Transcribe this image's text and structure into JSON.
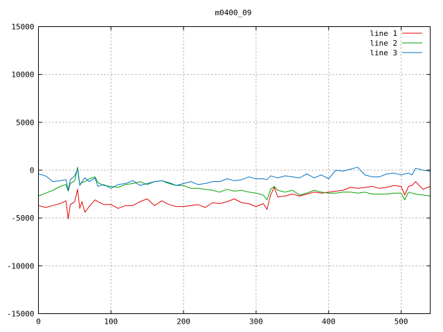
{
  "chart_data": {
    "type": "line",
    "title": "m0400_09",
    "xlabel": "",
    "ylabel": "",
    "xlim": [
      0,
      540
    ],
    "ylim": [
      -15000,
      15000
    ],
    "x_ticks": [
      0,
      100,
      200,
      300,
      400,
      500
    ],
    "y_ticks": [
      -15000,
      -10000,
      -5000,
      0,
      5000,
      10000,
      15000
    ],
    "grid": true,
    "legend_position": "top-right",
    "x": [
      0,
      10,
      20,
      30,
      38,
      41,
      44,
      50,
      54,
      57,
      60,
      64,
      70,
      78,
      82,
      90,
      100,
      110,
      120,
      130,
      140,
      150,
      160,
      170,
      180,
      190,
      200,
      210,
      220,
      230,
      240,
      250,
      260,
      270,
      280,
      290,
      300,
      310,
      315,
      320,
      325,
      330,
      340,
      350,
      360,
      370,
      380,
      390,
      400,
      410,
      420,
      430,
      440,
      450,
      460,
      470,
      480,
      490,
      500,
      505,
      510,
      515,
      520,
      530,
      540
    ],
    "series": [
      {
        "name": "line 1",
        "color": "#e00000",
        "values": [
          -3700,
          -3900,
          -3700,
          -3500,
          -3200,
          -5100,
          -3600,
          -3300,
          -2000,
          -4000,
          -3300,
          -4400,
          -3800,
          -3100,
          -3300,
          -3600,
          -3600,
          -4000,
          -3700,
          -3700,
          -3300,
          -3000,
          -3700,
          -3200,
          -3600,
          -3800,
          -3800,
          -3700,
          -3600,
          -3900,
          -3400,
          -3500,
          -3300,
          -3000,
          -3400,
          -3500,
          -3800,
          -3500,
          -4100,
          -2600,
          -1800,
          -2800,
          -2700,
          -2500,
          -2700,
          -2500,
          -2300,
          -2400,
          -2300,
          -2200,
          -2100,
          -1800,
          -1900,
          -1800,
          -1700,
          -1900,
          -1800,
          -1600,
          -1700,
          -2600,
          -1700,
          -1600,
          -1200,
          -2000,
          -1700
        ]
      },
      {
        "name": "line 2",
        "color": "#00a000",
        "values": [
          -2700,
          -2400,
          -2100,
          -1700,
          -1500,
          -2200,
          -1400,
          -1100,
          300,
          -1500,
          -1300,
          -1200,
          -900,
          -700,
          -1300,
          -1600,
          -1700,
          -1800,
          -1500,
          -1400,
          -1200,
          -1500,
          -1200,
          -1100,
          -1400,
          -1600,
          -1600,
          -1900,
          -1900,
          -2000,
          -2100,
          -2300,
          -2000,
          -2200,
          -2100,
          -2300,
          -2400,
          -2600,
          -3100,
          -2000,
          -1700,
          -2100,
          -2300,
          -2100,
          -2600,
          -2400,
          -2100,
          -2300,
          -2400,
          -2400,
          -2300,
          -2300,
          -2400,
          -2300,
          -2500,
          -2500,
          -2500,
          -2400,
          -2400,
          -3100,
          -2300,
          -2400,
          -2500,
          -2600,
          -2700
        ]
      },
      {
        "name": "line 3",
        "color": "#0070c0",
        "values": [
          -400,
          -600,
          -1200,
          -1100,
          -1000,
          -2100,
          -1000,
          -600,
          100,
          -1600,
          -1200,
          -800,
          -1200,
          -800,
          -1700,
          -1500,
          -1900,
          -1500,
          -1400,
          -1100,
          -1600,
          -1400,
          -1200,
          -1100,
          -1300,
          -1600,
          -1400,
          -1200,
          -1500,
          -1400,
          -1200,
          -1200,
          -900,
          -1100,
          -1000,
          -700,
          -900,
          -900,
          -1000,
          -600,
          -700,
          -800,
          -600,
          -700,
          -800,
          -400,
          -800,
          -500,
          -900,
          0,
          -100,
          100,
          300,
          -500,
          -700,
          -700,
          -400,
          -300,
          -500,
          -400,
          -300,
          -500,
          200,
          0,
          -100
        ]
      }
    ]
  }
}
